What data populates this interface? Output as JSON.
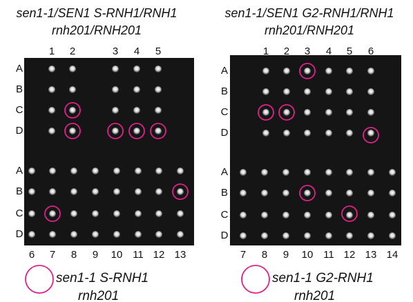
{
  "panels": [
    {
      "title": [
        "sen1-1/SEN1 S-RNH1/RNH1",
        "rnh201/RNH201"
      ],
      "top_columns": [
        "1",
        "2",
        "3",
        "4",
        "5"
      ],
      "top_rows": [
        "A",
        "B",
        "C",
        "D"
      ],
      "bottom_rows": [
        "A",
        "B",
        "C",
        "D"
      ],
      "bottom_columns": [
        "6",
        "7",
        "8",
        "9",
        "10",
        "11",
        "12",
        "13"
      ],
      "legend": [
        "sen1-1 S-RNH1",
        "rnh201"
      ]
    },
    {
      "title": [
        "sen1-1/SEN1 G2-RNH1/RNH1",
        "rnh201/RNH201"
      ],
      "top_columns": [
        "1",
        "2",
        "3",
        "4",
        "5",
        "6"
      ],
      "top_rows": [
        "A",
        "B",
        "C",
        "D"
      ],
      "bottom_rows": [
        "A",
        "B",
        "C",
        "D"
      ],
      "bottom_columns": [
        "7",
        "8",
        "9",
        "10",
        "11",
        "12",
        "13",
        "14"
      ],
      "legend": [
        "sen1-1 G2-RNH1",
        "rnh201"
      ]
    }
  ]
}
